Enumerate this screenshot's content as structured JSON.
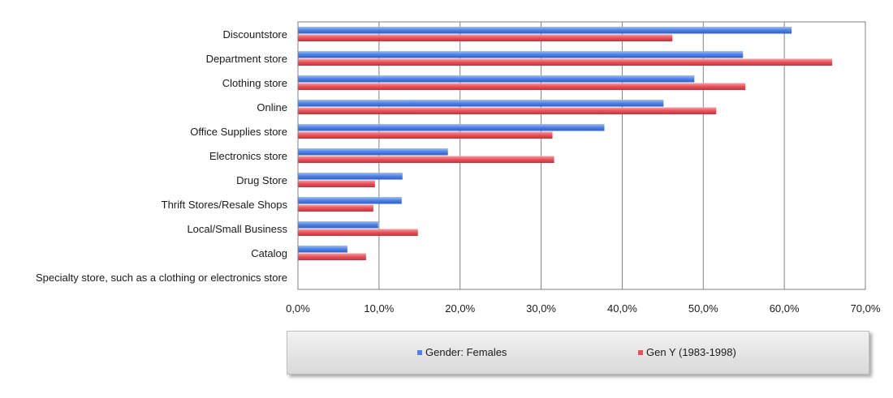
{
  "chart_data": {
    "type": "bar",
    "orientation": "horizontal",
    "categories": [
      "Discountstore",
      "Department store",
      "Clothing store",
      "Online",
      "Office Supplies store",
      "Electronics store",
      "Drug Store",
      "Thrift Stores/Resale Shops",
      "Local/Small Business",
      "Catalog",
      "Specialty store, such as a clothing or electronics store"
    ],
    "series": [
      {
        "name": "Gender: Females",
        "color": "#4f81e6",
        "values": [
          60.9,
          54.9,
          48.9,
          45.1,
          37.8,
          18.5,
          12.9,
          12.8,
          9.9,
          6.1,
          0
        ]
      },
      {
        "name": "Gen Y (1983-1998)",
        "color": "#e8515a",
        "values": [
          46.2,
          65.9,
          55.2,
          51.6,
          31.4,
          31.6,
          9.5,
          9.3,
          14.8,
          8.4,
          0
        ]
      }
    ],
    "xlim": [
      0,
      70
    ],
    "xticks": [
      "0,0%",
      "10,0%",
      "20,0%",
      "30,0%",
      "40,0%",
      "50,0%",
      "60,0%",
      "70,0%"
    ],
    "grid": true,
    "legend_placement": "bottom"
  }
}
